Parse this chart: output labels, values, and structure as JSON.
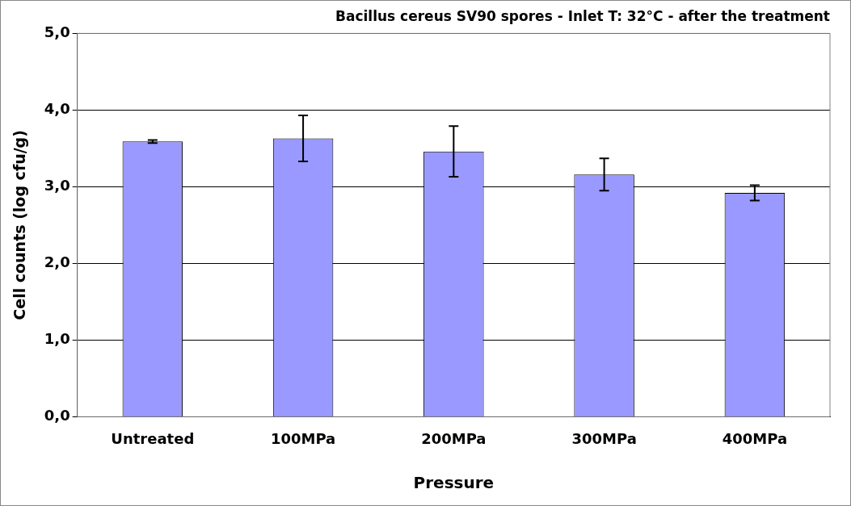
{
  "chart_data": {
    "type": "bar",
    "title": "Bacillus cereus SV90 spores - Inlet T: 32°C - after the treatment",
    "xlabel": "Pressure",
    "ylabel": "Cell counts (log cfu/g)",
    "categories": [
      "Untreated",
      "100MPa",
      "200MPa",
      "300MPa",
      "400MPa"
    ],
    "values": [
      3.59,
      3.63,
      3.46,
      3.16,
      2.92
    ],
    "errors": [
      0.02,
      0.3,
      0.33,
      0.21,
      0.1
    ],
    "color": "#9999ff",
    "ylim": [
      0,
      5
    ],
    "yticks": [
      {
        "value": 0,
        "label": "0,0"
      },
      {
        "value": 1,
        "label": "1,0"
      },
      {
        "value": 2,
        "label": "2,0"
      },
      {
        "value": 3,
        "label": "3,0"
      },
      {
        "value": 4,
        "label": "4,0"
      },
      {
        "value": 5,
        "label": "5,0"
      }
    ],
    "grid": "y",
    "legend": false
  }
}
